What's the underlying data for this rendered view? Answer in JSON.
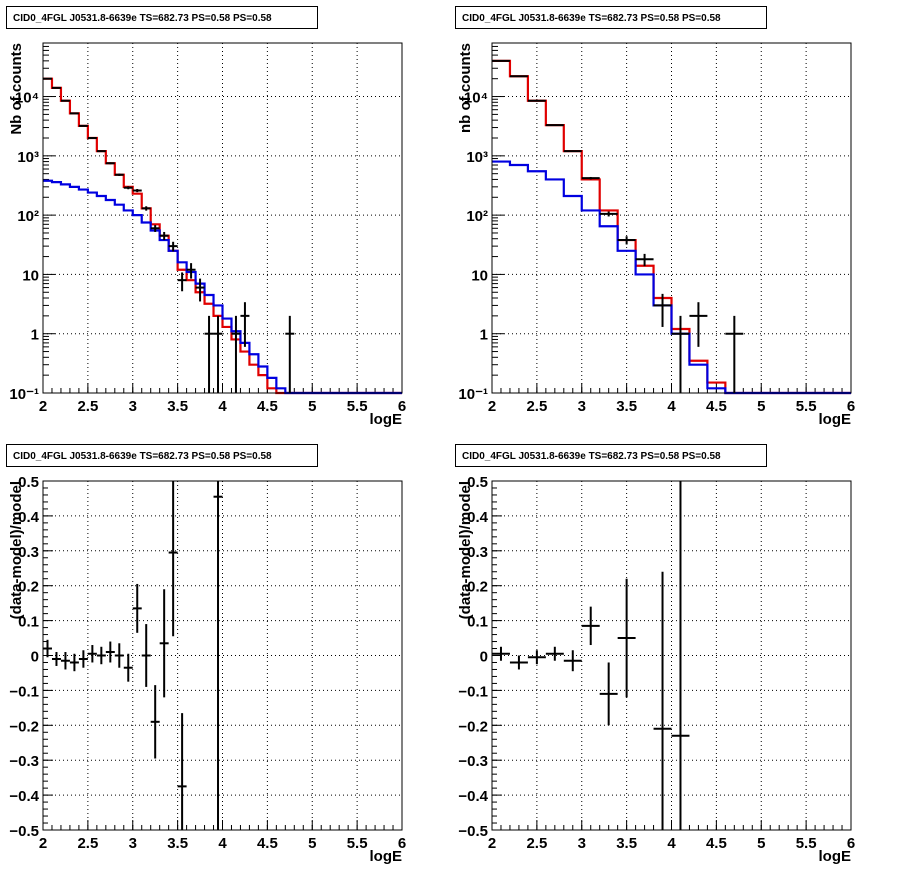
{
  "colors": {
    "data": "#000000",
    "total_model": "#e00000",
    "source_model": "#0000e0",
    "grid": "#000000"
  },
  "panels": [
    {
      "title": "CID0_4FGL J0531.8-6639e TS=682.73 PS=0.58 PS=0.58"
    },
    {
      "title": "CID0_4FGL J0531.8-6639e TS=682.73 PS=0.58 PS=0.58"
    },
    {
      "title": "CID0_4FGL J0531.8-6639e TS=682.73 PS=0.58 PS=0.58"
    },
    {
      "title": "CID0_4FGL J0531.8-6639e TS=682.73 PS=0.58 PS=0.58"
    }
  ],
  "chart_data": [
    {
      "type": "line",
      "title": "CID0_4FGL J0531.8-6639e TS=682.73 PS=0.58 PS=0.58",
      "xlabel": "logE",
      "ylabel": "Nb of counts",
      "yscale": "log",
      "xlim": [
        2,
        6
      ],
      "ylim": [
        0.1,
        80000
      ],
      "xticks": [
        "2",
        "2.5",
        "3",
        "3.5",
        "4",
        "4.5",
        "5",
        "5.5",
        "6"
      ],
      "yticks": [
        "10⁻¹",
        "1",
        "10",
        "10²",
        "10³",
        "10⁴"
      ],
      "grid": true,
      "bin_edges": [
        2.0,
        2.1,
        2.2,
        2.3,
        2.4,
        2.5,
        2.6,
        2.7,
        2.8,
        2.9,
        3.0,
        3.1,
        3.2,
        3.3,
        3.4,
        3.5,
        3.6,
        3.7,
        3.8,
        3.9,
        4.0,
        4.1,
        4.2,
        4.3,
        4.4,
        4.5,
        4.6,
        4.7,
        4.8,
        4.9,
        5.0,
        5.1,
        5.2,
        5.3,
        5.4,
        5.5,
        5.6,
        5.7,
        5.8,
        5.9,
        6.0
      ],
      "series": [
        {
          "role": "total_model",
          "values": [
            20000,
            14000,
            8500,
            5200,
            3200,
            2000,
            1200,
            750,
            480,
            300,
            230,
            130,
            70,
            45,
            25,
            12,
            8,
            5,
            3.2,
            2.0,
            1.3,
            0.8,
            0.5,
            0.3,
            0.2,
            0.12,
            0.1,
            0.1,
            0.1,
            0.1,
            0.1,
            0.1,
            0.1,
            0.1,
            0.1,
            0.1,
            0.1,
            0.1,
            0.1,
            0.1
          ]
        },
        {
          "role": "source_model",
          "values": [
            380,
            360,
            330,
            300,
            270,
            240,
            210,
            180,
            150,
            120,
            100,
            75,
            55,
            38,
            25,
            16,
            11,
            7,
            4.5,
            3.0,
            1.8,
            1.1,
            0.7,
            0.45,
            0.28,
            0.18,
            0.12,
            0.1,
            0.1,
            0.1,
            0.1,
            0.1,
            0.1,
            0.1,
            0.1,
            0.1,
            0.1,
            0.1,
            0.1,
            0.1
          ]
        },
        {
          "role": "data",
          "points": [
            {
              "x": 2.05,
              "y": 20000,
              "lo": 19860,
              "hi": 20140
            },
            {
              "x": 2.15,
              "y": 14000,
              "lo": 13880,
              "hi": 14120
            },
            {
              "x": 2.25,
              "y": 8500,
              "lo": 8410,
              "hi": 8590
            },
            {
              "x": 2.35,
              "y": 5200,
              "lo": 5130,
              "hi": 5270
            },
            {
              "x": 2.45,
              "y": 3200,
              "lo": 3140,
              "hi": 3260
            },
            {
              "x": 2.55,
              "y": 2000,
              "lo": 1955,
              "hi": 2045
            },
            {
              "x": 2.65,
              "y": 1200,
              "lo": 1165,
              "hi": 1235
            },
            {
              "x": 2.75,
              "y": 750,
              "lo": 723,
              "hi": 777
            },
            {
              "x": 2.85,
              "y": 480,
              "lo": 458,
              "hi": 502
            },
            {
              "x": 2.95,
              "y": 290,
              "lo": 273,
              "hi": 307
            },
            {
              "x": 3.05,
              "y": 260,
              "lo": 244,
              "hi": 276
            },
            {
              "x": 3.15,
              "y": 130,
              "lo": 119,
              "hi": 141
            },
            {
              "x": 3.25,
              "y": 60,
              "lo": 52,
              "hi": 68
            },
            {
              "x": 3.35,
              "y": 45,
              "lo": 38,
              "hi": 52
            },
            {
              "x": 3.45,
              "y": 30,
              "lo": 24.5,
              "hi": 35.5
            },
            {
              "x": 3.55,
              "y": 8,
              "lo": 5.2,
              "hi": 10.8
            },
            {
              "x": 3.65,
              "y": 12,
              "lo": 8.5,
              "hi": 15.5
            },
            {
              "x": 3.75,
              "y": 6,
              "lo": 3.5,
              "hi": 8.5
            },
            {
              "x": 3.85,
              "y": 1,
              "lo": 0.1,
              "hi": 2
            },
            {
              "x": 3.95,
              "y": 1,
              "lo": 0.1,
              "hi": 2
            },
            {
              "x": 4.15,
              "y": 1,
              "lo": 0.1,
              "hi": 2
            },
            {
              "x": 4.25,
              "y": 2,
              "lo": 0.6,
              "hi": 3.4
            },
            {
              "x": 4.75,
              "y": 1,
              "lo": 0.1,
              "hi": 2
            }
          ]
        }
      ]
    },
    {
      "type": "line",
      "title": "CID0_4FGL J0531.8-6639e TS=682.73 PS=0.58 PS=0.58",
      "xlabel": "logE",
      "ylabel": "nb of counts",
      "yscale": "log",
      "xlim": [
        2,
        6
      ],
      "ylim": [
        0.1,
        80000
      ],
      "xticks": [
        "2",
        "2.5",
        "3",
        "3.5",
        "4",
        "4.5",
        "5",
        "5.5",
        "6"
      ],
      "yticks": [
        "10⁻¹",
        "1",
        "10",
        "10²",
        "10³",
        "10⁴"
      ],
      "grid": true,
      "bin_edges": [
        2.0,
        2.2,
        2.4,
        2.6,
        2.8,
        3.0,
        3.2,
        3.4,
        3.6,
        3.8,
        4.0,
        4.2,
        4.4,
        4.6,
        4.8,
        5.0,
        5.2,
        5.4,
        5.6,
        5.8,
        6.0
      ],
      "series": [
        {
          "role": "total_model",
          "values": [
            40000,
            22000,
            8500,
            3300,
            1200,
            400,
            120,
            38,
            14,
            4,
            1.2,
            0.35,
            0.15,
            0.1,
            0.1,
            0.1,
            0.1,
            0.1,
            0.1,
            0.1
          ]
        },
        {
          "role": "source_model",
          "values": [
            800,
            700,
            550,
            400,
            210,
            120,
            65,
            25,
            10,
            3,
            1,
            0.3,
            0.12,
            0.1,
            0.1,
            0.1,
            0.1,
            0.1,
            0.1,
            0.1
          ]
        },
        {
          "role": "data",
          "points": [
            {
              "x": 2.1,
              "y": 40000,
              "lo": 39800,
              "hi": 40200
            },
            {
              "x": 2.3,
              "y": 22000,
              "lo": 21850,
              "hi": 22150
            },
            {
              "x": 2.5,
              "y": 8500,
              "lo": 8410,
              "hi": 8590
            },
            {
              "x": 2.7,
              "y": 3300,
              "lo": 3240,
              "hi": 3360
            },
            {
              "x": 2.9,
              "y": 1200,
              "lo": 1165,
              "hi": 1235
            },
            {
              "x": 3.1,
              "y": 420,
              "lo": 400,
              "hi": 440
            },
            {
              "x": 3.3,
              "y": 105,
              "lo": 95,
              "hi": 115
            },
            {
              "x": 3.5,
              "y": 38,
              "lo": 32,
              "hi": 44
            },
            {
              "x": 3.7,
              "y": 18,
              "lo": 13.8,
              "hi": 22.2
            },
            {
              "x": 3.9,
              "y": 3,
              "lo": 1.3,
              "hi": 4.7
            },
            {
              "x": 4.1,
              "y": 1,
              "lo": 0.1,
              "hi": 2
            },
            {
              "x": 4.3,
              "y": 2,
              "lo": 0.6,
              "hi": 3.4
            },
            {
              "x": 4.7,
              "y": 1,
              "lo": 0.1,
              "hi": 2
            }
          ]
        }
      ]
    },
    {
      "type": "scatter",
      "title": "CID0_4FGL J0531.8-6639e TS=682.73 PS=0.58 PS=0.58",
      "xlabel": "logE",
      "ylabel": "(data-model)/model",
      "xlim": [
        2,
        6
      ],
      "ylim": [
        -0.5,
        0.5
      ],
      "xticks": [
        "2",
        "2.5",
        "3",
        "3.5",
        "4",
        "4.5",
        "5",
        "5.5",
        "6"
      ],
      "yticks": [
        "−0.5",
        "−0.4",
        "−0.3",
        "−0.2",
        "−0.1",
        "0",
        "0.1",
        "0.2",
        "0.3",
        "0.4",
        "0.5"
      ],
      "grid": true,
      "xerr": 0.05,
      "points": [
        {
          "x": 2.05,
          "y": 0.02,
          "lo": -0.005,
          "hi": 0.045
        },
        {
          "x": 2.15,
          "y": -0.01,
          "lo": -0.03,
          "hi": 0.01
        },
        {
          "x": 2.25,
          "y": -0.015,
          "lo": -0.04,
          "hi": 0.01
        },
        {
          "x": 2.35,
          "y": -0.02,
          "lo": -0.045,
          "hi": 0.005
        },
        {
          "x": 2.45,
          "y": -0.01,
          "lo": -0.035,
          "hi": 0.015
        },
        {
          "x": 2.55,
          "y": 0.005,
          "lo": -0.02,
          "hi": 0.03
        },
        {
          "x": 2.65,
          "y": 0.0,
          "lo": -0.025,
          "hi": 0.025
        },
        {
          "x": 2.75,
          "y": 0.01,
          "lo": -0.02,
          "hi": 0.04
        },
        {
          "x": 2.85,
          "y": 0.0,
          "lo": -0.035,
          "hi": 0.035
        },
        {
          "x": 2.95,
          "y": -0.035,
          "lo": -0.075,
          "hi": 0.005
        },
        {
          "x": 3.05,
          "y": 0.135,
          "lo": 0.065,
          "hi": 0.205
        },
        {
          "x": 3.15,
          "y": 0.0,
          "lo": -0.09,
          "hi": 0.09
        },
        {
          "x": 3.25,
          "y": -0.19,
          "lo": -0.295,
          "hi": -0.085
        },
        {
          "x": 3.35,
          "y": 0.035,
          "lo": -0.12,
          "hi": 0.19
        },
        {
          "x": 3.45,
          "y": 0.295,
          "lo": 0.055,
          "hi": 0.5
        },
        {
          "x": 3.55,
          "y": -0.375,
          "lo": -0.5,
          "hi": -0.165
        },
        {
          "x": 3.95,
          "y": 0.455,
          "lo": -0.5,
          "hi": 0.5
        }
      ]
    },
    {
      "type": "scatter",
      "title": "CID0_4FGL J0531.8-6639e TS=682.73 PS=0.58 PS=0.58",
      "xlabel": "logE",
      "ylabel": "(data-model)/model",
      "xlim": [
        2,
        6
      ],
      "ylim": [
        -0.5,
        0.5
      ],
      "xticks": [
        "2",
        "2.5",
        "3",
        "3.5",
        "4",
        "4.5",
        "5",
        "5.5",
        "6"
      ],
      "yticks": [
        "−0.5",
        "−0.4",
        "−0.3",
        "−0.2",
        "−0.1",
        "0",
        "0.1",
        "0.2",
        "0.3",
        "0.4",
        "0.5"
      ],
      "grid": true,
      "xerr": 0.1,
      "points": [
        {
          "x": 2.1,
          "y": 0.005,
          "lo": -0.015,
          "hi": 0.025
        },
        {
          "x": 2.3,
          "y": -0.02,
          "lo": -0.04,
          "hi": 0.0
        },
        {
          "x": 2.5,
          "y": -0.005,
          "lo": -0.025,
          "hi": 0.015
        },
        {
          "x": 2.7,
          "y": 0.005,
          "lo": -0.015,
          "hi": 0.025
        },
        {
          "x": 2.9,
          "y": -0.015,
          "lo": -0.045,
          "hi": 0.015
        },
        {
          "x": 3.1,
          "y": 0.085,
          "lo": 0.03,
          "hi": 0.14
        },
        {
          "x": 3.3,
          "y": -0.11,
          "lo": -0.2,
          "hi": -0.02
        },
        {
          "x": 3.5,
          "y": 0.05,
          "lo": -0.12,
          "hi": 0.22
        },
        {
          "x": 3.9,
          "y": -0.21,
          "lo": -0.5,
          "hi": 0.24
        },
        {
          "x": 4.1,
          "y": -0.23,
          "lo": -0.5,
          "hi": 0.5
        }
      ]
    }
  ]
}
